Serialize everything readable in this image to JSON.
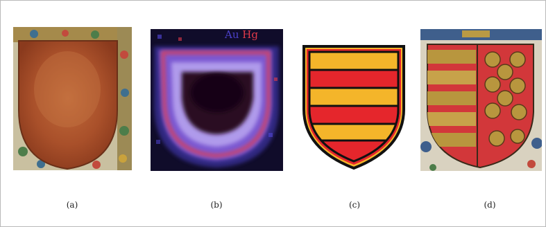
{
  "panels": [
    {
      "caption": "(a)"
    },
    {
      "caption": "(b)",
      "elements": [
        "Au",
        "Hg"
      ]
    },
    {
      "caption": "(c)"
    },
    {
      "caption": "(d)"
    }
  ],
  "colors": {
    "map_au": "#4b40c8",
    "map_hg": "#e23a4a",
    "shield_gold": "#f4b52a",
    "shield_red": "#e5262c",
    "shield_outline": "#111111"
  }
}
